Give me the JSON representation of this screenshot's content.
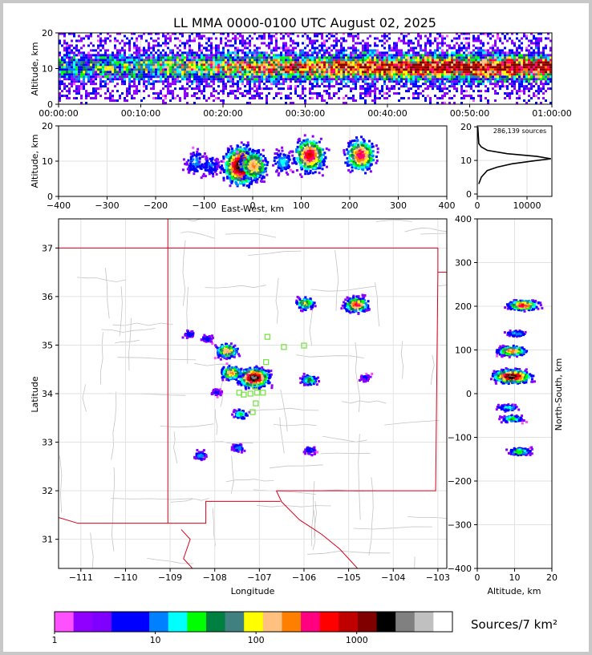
{
  "title": "LL MMA 0000-0100 UTC August 02, 2025",
  "colors": {
    "frame": "#c8c8c8",
    "state_lines": "#d8001c",
    "county_lines": "#c4c4c4",
    "station_markers": "#7ee24a",
    "sources_curve": "#000000"
  },
  "chart_data": [
    {
      "id": "time-height",
      "type": "heatmap",
      "ylabel": "Altitude, km",
      "xlabel": "",
      "ylim": [
        0,
        20
      ],
      "yticks": [
        "0",
        "10",
        "20"
      ],
      "xticks": [
        "00:00:00",
        "00:10:00",
        "00:20:00",
        "00:30:00",
        "00:40:00",
        "00:50:00",
        "01:00:00"
      ],
      "xlim_minutes": [
        0,
        60
      ],
      "description_values": {
        "dense_altitude_band_km": [
          4,
          14
        ],
        "peak_altitude_km": 10
      }
    },
    {
      "id": "ew-height",
      "type": "heatmap",
      "xlabel": "East-West, km",
      "ylabel": "Altitude, km",
      "xlim": [
        -400,
        400
      ],
      "ylim": [
        0,
        20
      ],
      "xticks": [
        "−400",
        "−300",
        "−200",
        "−100",
        "0",
        "100",
        "200",
        "300",
        "400"
      ],
      "yticks": [
        "0",
        "10",
        "20"
      ],
      "clusters": [
        {
          "x": -120,
          "y": 10,
          "density": 12
        },
        {
          "x": -90,
          "y": 9,
          "density": 8
        },
        {
          "x": -25,
          "y": 9,
          "density": 3000
        },
        {
          "x": 0,
          "y": 9,
          "density": 200
        },
        {
          "x": 60,
          "y": 10,
          "density": 15
        },
        {
          "x": 115,
          "y": 12,
          "density": 600
        },
        {
          "x": 220,
          "y": 12,
          "density": 400
        }
      ]
    },
    {
      "id": "altitude-histogram",
      "type": "line",
      "annotation": "286,139 sources",
      "xlim": [
        0,
        15000
      ],
      "ylim": [
        0,
        21
      ],
      "xticks": [
        "0",
        "10000"
      ],
      "yticks": [
        "0",
        "10",
        "20"
      ],
      "x": [
        300,
        800,
        2000,
        4000,
        7000,
        11000,
        14800,
        12000,
        6000,
        2000,
        800,
        300,
        100
      ],
      "y": [
        3,
        5,
        7,
        8,
        9,
        9.8,
        10.5,
        11.2,
        12,
        13,
        14,
        15,
        20
      ]
    },
    {
      "id": "plan-view",
      "type": "heatmap",
      "xlabel": "Longitude",
      "ylabel": "Latitude",
      "xlim": [
        -111.5,
        -102.8
      ],
      "ylim": [
        30.4,
        37.6
      ],
      "xticks": [
        "−111",
        "−110",
        "−109",
        "−108",
        "−107",
        "−106",
        "−105",
        "−104",
        "−103"
      ],
      "yticks": [
        "31",
        "32",
        "33",
        "34",
        "35",
        "36",
        "37"
      ],
      "clusters": [
        {
          "lon": -107.15,
          "lat": 34.35,
          "density": 3000
        },
        {
          "lon": -107.65,
          "lat": 34.45,
          "density": 200
        },
        {
          "lon": -107.75,
          "lat": 34.9,
          "density": 200
        },
        {
          "lon": -104.85,
          "lat": 35.85,
          "density": 400
        },
        {
          "lon": -106.0,
          "lat": 35.88,
          "density": 90
        },
        {
          "lon": -107.45,
          "lat": 33.6,
          "density": 25
        },
        {
          "lon": -105.9,
          "lat": 34.3,
          "density": 40
        },
        {
          "lon": -108.35,
          "lat": 32.75,
          "density": 12
        },
        {
          "lon": -107.5,
          "lat": 32.9,
          "density": 10
        },
        {
          "lon": -105.9,
          "lat": 32.85,
          "density": 8
        },
        {
          "lon": -108.6,
          "lat": 35.25,
          "density": 6
        },
        {
          "lon": -108.2,
          "lat": 35.15,
          "density": 6
        },
        {
          "lon": -108.0,
          "lat": 34.05,
          "density": 5
        },
        {
          "lon": -104.65,
          "lat": 34.35,
          "density": 5
        }
      ],
      "stations": [
        {
          "lon": -106.82,
          "lat": 35.17
        },
        {
          "lon": -106.45,
          "lat": 34.96
        },
        {
          "lon": -106.0,
          "lat": 34.99
        },
        {
          "lon": -106.85,
          "lat": 34.65
        },
        {
          "lon": -107.45,
          "lat": 34.02
        },
        {
          "lon": -107.35,
          "lat": 33.98
        },
        {
          "lon": -107.2,
          "lat": 34.0
        },
        {
          "lon": -107.05,
          "lat": 34.02
        },
        {
          "lon": -106.92,
          "lat": 34.02
        },
        {
          "lon": -107.1,
          "lat": 34.15
        },
        {
          "lon": -107.08,
          "lat": 33.8
        },
        {
          "lon": -107.15,
          "lat": 33.62
        }
      ]
    },
    {
      "id": "ns-height",
      "type": "heatmap",
      "xlabel": "Altitude, km",
      "ylabel": "North-South, km",
      "xlim": [
        0,
        20
      ],
      "ylim": [
        -400,
        400
      ],
      "xticks": [
        "0",
        "10",
        "20"
      ],
      "yticks": [
        "−400",
        "−300",
        "−200",
        "−100",
        "0",
        "100",
        "200",
        "300",
        "400"
      ],
      "clusters": [
        {
          "x": 12,
          "y": 205,
          "density": 400
        },
        {
          "x": 10,
          "y": 140,
          "density": 15
        },
        {
          "x": 9,
          "y": 100,
          "density": 250
        },
        {
          "x": 9,
          "y": 42,
          "density": 3000
        },
        {
          "x": 8,
          "y": -30,
          "density": 20
        },
        {
          "x": 9,
          "y": -55,
          "density": 30
        },
        {
          "x": 11,
          "y": -130,
          "density": 40
        }
      ]
    }
  ],
  "colorbar": {
    "label": "Sources/7 km²",
    "ticks": [
      "1",
      "10",
      "100",
      "1000"
    ],
    "colors": [
      "#ff50ff",
      "#9000ff",
      "#8000ff",
      "#0000ff",
      "#0000ff",
      "#0080ff",
      "#00ffff",
      "#00ff00",
      "#008040",
      "#408080",
      "#ffff00",
      "#ffc080",
      "#ff8000",
      "#ff0080",
      "#ff0000",
      "#c00000",
      "#800000",
      "#000000",
      "#808080",
      "#c0c0c0",
      "#ffffff"
    ]
  }
}
